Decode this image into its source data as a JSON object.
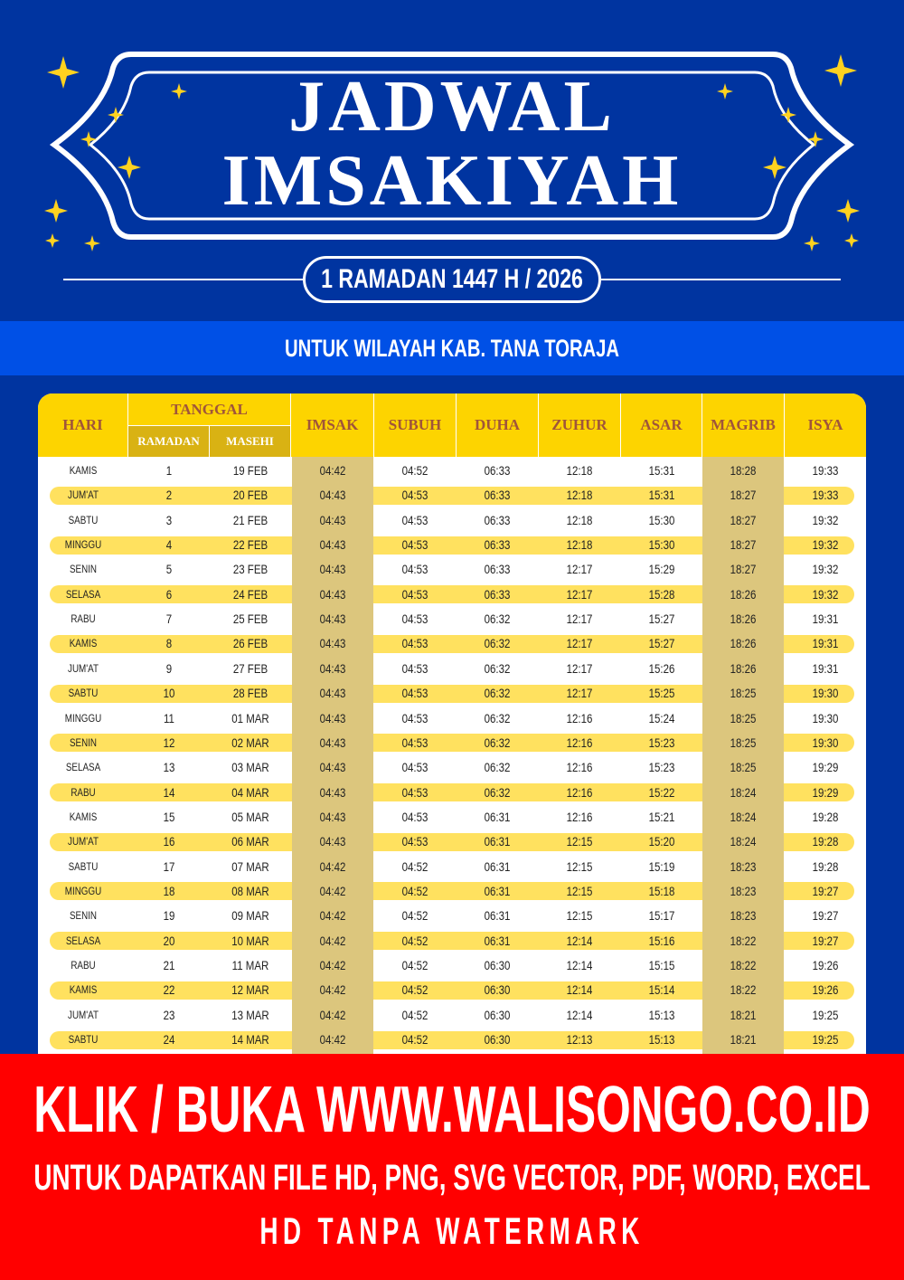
{
  "header": {
    "title_line1": "JADWAL",
    "title_line2": "IMSAKIYAH",
    "period": "1 RAMADAN 1447 H / 2026",
    "region": "UNTUK WILAYAH KAB. TANA TORAJA"
  },
  "colors": {
    "background": "#0034a0",
    "band": "#0050e6",
    "header_yellow": "#fdd400",
    "stripe": "#ffe15f",
    "shade": "#dcc67d",
    "footer": "#ff0000"
  },
  "table": {
    "headers": {
      "hari": "HARI",
      "tanggal": "TANGGAL",
      "ramadan": "RAMADAN",
      "masehi": "MASEHI",
      "imsak": "IMSAK",
      "subuh": "SUBUH",
      "duha": "DUHA",
      "zuhur": "ZUHUR",
      "asar": "ASAR",
      "magrib": "MAGRIB",
      "isya": "ISYA"
    },
    "rows": [
      [
        "KAMIS",
        "1",
        "19 FEB",
        "04:42",
        "04:52",
        "06:33",
        "12:18",
        "15:31",
        "18:28",
        "19:33"
      ],
      [
        "JUM'AT",
        "2",
        "20 FEB",
        "04:43",
        "04:53",
        "06:33",
        "12:18",
        "15:31",
        "18:27",
        "19:33"
      ],
      [
        "SABTU",
        "3",
        "21 FEB",
        "04:43",
        "04:53",
        "06:33",
        "12:18",
        "15:30",
        "18:27",
        "19:32"
      ],
      [
        "MINGGU",
        "4",
        "22 FEB",
        "04:43",
        "04:53",
        "06:33",
        "12:18",
        "15:30",
        "18:27",
        "19:32"
      ],
      [
        "SENIN",
        "5",
        "23 FEB",
        "04:43",
        "04:53",
        "06:33",
        "12:17",
        "15:29",
        "18:27",
        "19:32"
      ],
      [
        "SELASA",
        "6",
        "24 FEB",
        "04:43",
        "04:53",
        "06:33",
        "12:17",
        "15:28",
        "18:26",
        "19:32"
      ],
      [
        "RABU",
        "7",
        "25 FEB",
        "04:43",
        "04:53",
        "06:32",
        "12:17",
        "15:27",
        "18:26",
        "19:31"
      ],
      [
        "KAMIS",
        "8",
        "26 FEB",
        "04:43",
        "04:53",
        "06:32",
        "12:17",
        "15:27",
        "18:26",
        "19:31"
      ],
      [
        "JUM'AT",
        "9",
        "27 FEB",
        "04:43",
        "04:53",
        "06:32",
        "12:17",
        "15:26",
        "18:26",
        "19:31"
      ],
      [
        "SABTU",
        "10",
        "28 FEB",
        "04:43",
        "04:53",
        "06:32",
        "12:17",
        "15:25",
        "18:25",
        "19:30"
      ],
      [
        "MINGGU",
        "11",
        "01 MAR",
        "04:43",
        "04:53",
        "06:32",
        "12:16",
        "15:24",
        "18:25",
        "19:30"
      ],
      [
        "SENIN",
        "12",
        "02 MAR",
        "04:43",
        "04:53",
        "06:32",
        "12:16",
        "15:23",
        "18:25",
        "19:30"
      ],
      [
        "SELASA",
        "13",
        "03 MAR",
        "04:43",
        "04:53",
        "06:32",
        "12:16",
        "15:23",
        "18:25",
        "19:29"
      ],
      [
        "RABU",
        "14",
        "04 MAR",
        "04:43",
        "04:53",
        "06:32",
        "12:16",
        "15:22",
        "18:24",
        "19:29"
      ],
      [
        "KAMIS",
        "15",
        "05 MAR",
        "04:43",
        "04:53",
        "06:31",
        "12:16",
        "15:21",
        "18:24",
        "19:28"
      ],
      [
        "JUM'AT",
        "16",
        "06 MAR",
        "04:43",
        "04:53",
        "06:31",
        "12:15",
        "15:20",
        "18:24",
        "19:28"
      ],
      [
        "SABTU",
        "17",
        "07 MAR",
        "04:42",
        "04:52",
        "06:31",
        "12:15",
        "15:19",
        "18:23",
        "19:28"
      ],
      [
        "MINGGU",
        "18",
        "08 MAR",
        "04:42",
        "04:52",
        "06:31",
        "12:15",
        "15:18",
        "18:23",
        "19:27"
      ],
      [
        "SENIN",
        "19",
        "09 MAR",
        "04:42",
        "04:52",
        "06:31",
        "12:15",
        "15:17",
        "18:23",
        "19:27"
      ],
      [
        "SELASA",
        "20",
        "10 MAR",
        "04:42",
        "04:52",
        "06:31",
        "12:14",
        "15:16",
        "18:22",
        "19:27"
      ],
      [
        "RABU",
        "21",
        "11 MAR",
        "04:42",
        "04:52",
        "06:30",
        "12:14",
        "15:15",
        "18:22",
        "19:26"
      ],
      [
        "KAMIS",
        "22",
        "12 MAR",
        "04:42",
        "04:52",
        "06:30",
        "12:14",
        "15:14",
        "18:22",
        "19:26"
      ],
      [
        "JUM'AT",
        "23",
        "13 MAR",
        "04:42",
        "04:52",
        "06:30",
        "12:14",
        "15:13",
        "18:21",
        "19:25"
      ],
      [
        "SABTU",
        "24",
        "14 MAR",
        "04:42",
        "04:52",
        "06:30",
        "12:13",
        "15:13",
        "18:21",
        "19:25"
      ]
    ]
  },
  "footer": {
    "line1": "KLIK / BUKA WWW.WALISONGO.CO.ID",
    "line2": "UNTUK DAPATKAN FILE HD, PNG, SVG VECTOR, PDF, WORD, EXCEL",
    "line3": "HD TANPA WATERMARK"
  }
}
